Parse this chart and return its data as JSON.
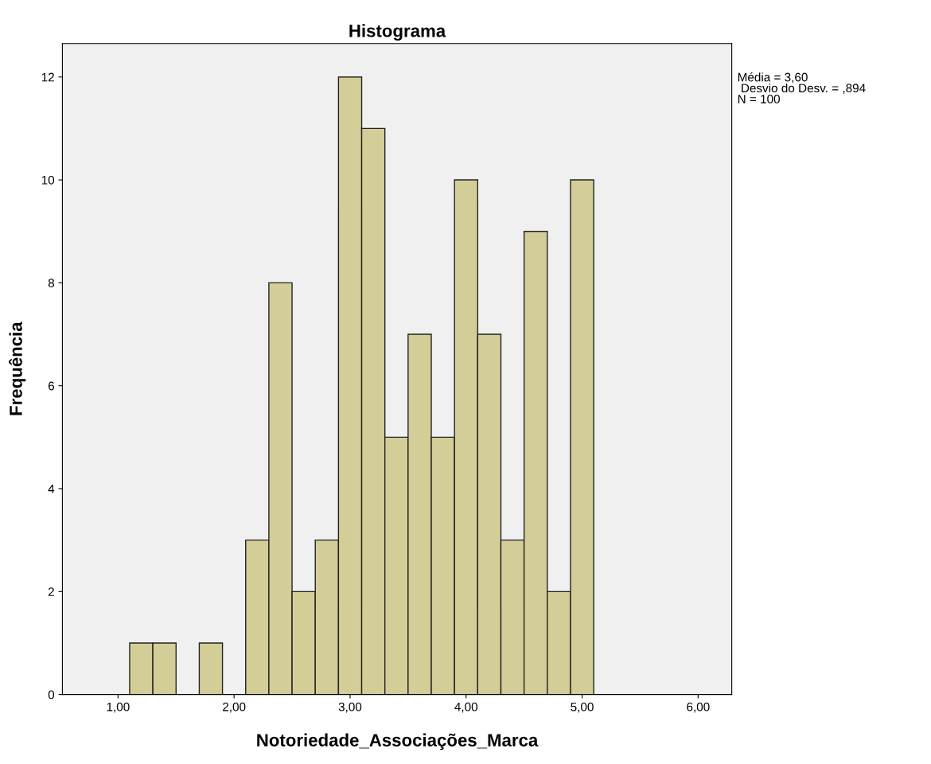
{
  "chart_data": {
    "type": "histogram",
    "title": "Histograma",
    "xlabel": "Notoriedade_Associações_Marca",
    "ylabel": "Frequência",
    "bins": [
      1.1,
      1.3,
      1.5,
      1.7,
      1.9,
      2.1,
      2.3,
      2.5,
      2.7,
      2.9,
      3.1,
      3.3,
      3.5,
      3.7,
      3.9,
      4.1,
      4.3,
      4.5,
      4.7,
      4.9,
      5.1
    ],
    "values": [
      1,
      1,
      0,
      1,
      0,
      3,
      8,
      2,
      3,
      12,
      11,
      5,
      7,
      5,
      10,
      7,
      3,
      9,
      2,
      10
    ],
    "color": "#d3ce97",
    "xlim": [
      0.52,
      6.29
    ],
    "xticks": [
      {
        "value": 1,
        "label": "1,00"
      },
      {
        "value": 2,
        "label": "2,00"
      },
      {
        "value": 3,
        "label": "3,00"
      },
      {
        "value": 4,
        "label": "4,00"
      },
      {
        "value": 5,
        "label": "5,00"
      },
      {
        "value": 6,
        "label": "6,00"
      }
    ],
    "ylim": [
      0,
      12.65
    ],
    "yticks": [
      0,
      2,
      4,
      6,
      8,
      10,
      12
    ],
    "grid": false,
    "legend": false,
    "annotations": [
      "Média = 3,60\n Desvio do Desv. = ,894\nN = 100"
    ]
  }
}
